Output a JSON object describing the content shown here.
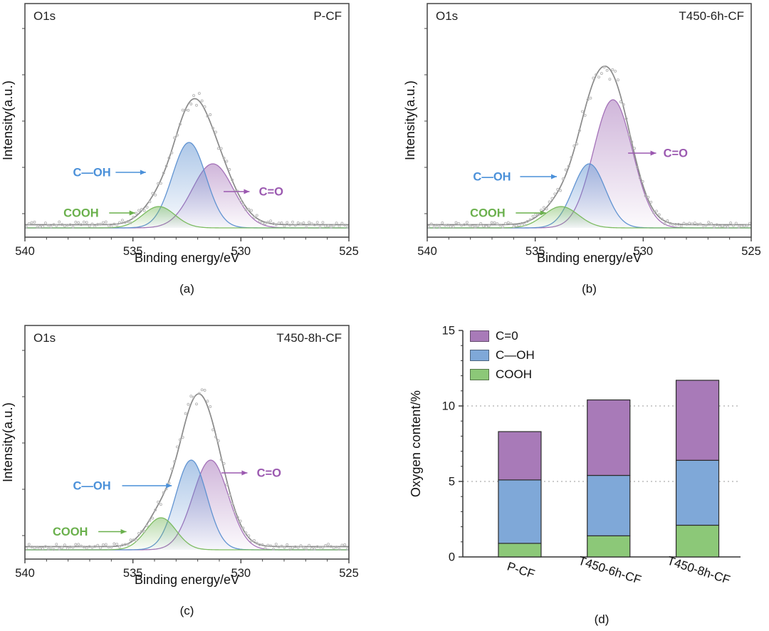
{
  "figure": {
    "xlabel": "Binding energy/eV",
    "ylabel_spectra": "Intensity(a.u.)",
    "ylabel_bars": "Oxygen content/%"
  },
  "colors": {
    "c_o": "#a06cb5",
    "c_oh": "#5b8fd0",
    "cooh": "#76b85a",
    "c_o_text": "#9b59b0",
    "c_oh_text": "#4a90d9",
    "cooh_text": "#6ab04c",
    "envelope": "#8a8a8a",
    "scatter": "#b5b5b5",
    "bar_c_o": "#a87ab8",
    "bar_c_oh": "#7fa8d8",
    "bar_cooh": "#8cc878"
  },
  "chart_data": [
    {
      "type": "line",
      "panel": "a",
      "tag": "(a)",
      "corner_left": "O1s",
      "corner_right": "P-CF",
      "xlabel": "Binding energy/eV",
      "ylabel": "Intensity(a.u.)",
      "x_range": [
        540,
        525
      ],
      "x_ticks": [
        540,
        535,
        530,
        525
      ],
      "peaks": [
        {
          "name": "C=O",
          "center_eV": 531.3,
          "height": 0.3,
          "sigma_eV": 0.95,
          "color": "c_o"
        },
        {
          "name": "C—OH",
          "center_eV": 532.4,
          "height": 0.4,
          "sigma_eV": 0.78,
          "color": "c_oh"
        },
        {
          "name": "COOH",
          "center_eV": 533.8,
          "height": 0.1,
          "sigma_eV": 0.75,
          "color": "cooh"
        }
      ],
      "annotations": [
        {
          "label": "C—OH",
          "color": "c_oh_text",
          "text": [
            536.9,
            0.26
          ],
          "arrow": [
            535.8,
            0.26,
            534.4,
            0.26
          ]
        },
        {
          "label": "C=O",
          "color": "c_o_text",
          "text": [
            528.6,
            0.17
          ],
          "arrow": [
            530.8,
            0.17,
            529.6,
            0.17
          ]
        },
        {
          "label": "COOH",
          "color": "cooh_text",
          "text": [
            537.4,
            0.07
          ],
          "arrow": [
            536.1,
            0.07,
            534.9,
            0.07
          ]
        }
      ]
    },
    {
      "type": "line",
      "panel": "b",
      "tag": "(b)",
      "corner_left": "O1s",
      "corner_right": "T450-6h-CF",
      "xlabel": "Binding energy/eV",
      "ylabel": "Intensity(a.u.)",
      "x_range": [
        540,
        525
      ],
      "x_ticks": [
        540,
        535,
        530,
        525
      ],
      "peaks": [
        {
          "name": "C=O",
          "center_eV": 531.4,
          "height": 0.6,
          "sigma_eV": 0.9,
          "color": "c_o"
        },
        {
          "name": "C—OH",
          "center_eV": 532.5,
          "height": 0.3,
          "sigma_eV": 0.75,
          "color": "c_oh"
        },
        {
          "name": "COOH",
          "center_eV": 533.8,
          "height": 0.1,
          "sigma_eV": 0.8,
          "color": "cooh"
        }
      ],
      "annotations": [
        {
          "label": "C—OH",
          "color": "c_oh_text",
          "text": [
            537.0,
            0.24
          ],
          "arrow": [
            535.7,
            0.24,
            534.0,
            0.24
          ]
        },
        {
          "label": "C=O",
          "color": "c_o_text",
          "text": [
            528.5,
            0.35
          ],
          "arrow": [
            530.7,
            0.35,
            529.4,
            0.35
          ]
        },
        {
          "label": "COOH",
          "color": "cooh_text",
          "text": [
            537.2,
            0.07
          ],
          "arrow": [
            535.9,
            0.07,
            534.5,
            0.07
          ]
        }
      ]
    },
    {
      "type": "line",
      "panel": "c",
      "tag": "(c)",
      "corner_left": "O1s",
      "corner_right": "T450-8h-CF",
      "xlabel": "Binding energy/eV",
      "ylabel": "Intensity(a.u.)",
      "x_range": [
        540,
        525
      ],
      "x_ticks": [
        540,
        535,
        530,
        525
      ],
      "peaks": [
        {
          "name": "C=O",
          "center_eV": 531.4,
          "height": 0.42,
          "sigma_eV": 0.82,
          "color": "c_o"
        },
        {
          "name": "C—OH",
          "center_eV": 532.3,
          "height": 0.42,
          "sigma_eV": 0.72,
          "color": "c_oh"
        },
        {
          "name": "COOH",
          "center_eV": 533.7,
          "height": 0.15,
          "sigma_eV": 0.7,
          "color": "cooh"
        }
      ],
      "annotations": [
        {
          "label": "C—OH",
          "color": "c_oh_text",
          "text": [
            536.9,
            0.3
          ],
          "arrow": [
            535.5,
            0.3,
            533.2,
            0.3
          ]
        },
        {
          "label": "C=O",
          "color": "c_o_text",
          "text": [
            528.7,
            0.36
          ],
          "arrow": [
            530.9,
            0.36,
            529.7,
            0.36
          ]
        },
        {
          "label": "COOH",
          "color": "cooh_text",
          "text": [
            537.9,
            0.085
          ],
          "arrow": [
            536.6,
            0.085,
            535.3,
            0.085
          ]
        }
      ]
    },
    {
      "type": "bar",
      "panel": "d",
      "tag": "(d)",
      "ylabel": "Oxygen content/%",
      "categories": [
        "P-CF",
        "T450-6h-CF",
        "T450-8h-CF"
      ],
      "series": [
        {
          "name": "COOH",
          "color": "bar_cooh",
          "values": [
            0.9,
            1.4,
            2.1
          ]
        },
        {
          "name": "C—OH",
          "color": "bar_c_oh",
          "values": [
            4.2,
            4.0,
            4.3
          ]
        },
        {
          "name": "C=0",
          "color": "bar_c_o",
          "values": [
            3.2,
            5.0,
            5.3
          ]
        }
      ],
      "totals": [
        8.3,
        10.4,
        11.7
      ],
      "ylim": [
        0,
        15
      ],
      "y_ticks": [
        0,
        5,
        10,
        15
      ],
      "gridlines": [
        5,
        10
      ],
      "grid_style": "dotted",
      "legend_position": "top-left"
    }
  ]
}
